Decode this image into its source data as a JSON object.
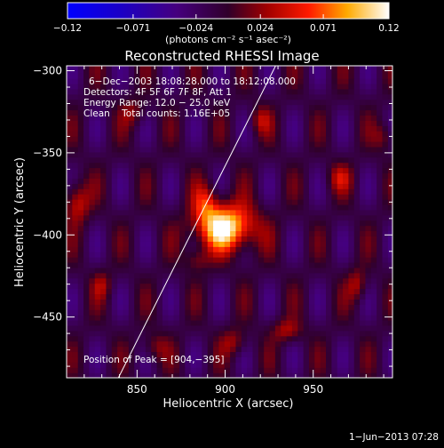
{
  "chart_data": {
    "type": "heatmap",
    "title": "Reconstructed RHESSI Image",
    "xlabel": "Heliocentric X (arcsec)",
    "ylabel": "Heliocentric Y (arcsec)",
    "xlim": [
      810,
      995
    ],
    "ylim": [
      -487,
      -297
    ],
    "x_ticks": [
      850,
      900,
      950
    ],
    "y_ticks": [
      -300,
      -350,
      -400,
      -450
    ],
    "x_tick_labels": [
      "850",
      "900",
      "950"
    ],
    "y_tick_labels": [
      "−300",
      "−350",
      "−400",
      "−450"
    ],
    "colorbar": {
      "min": -0.12,
      "max": 0.12,
      "tick_values": [
        -0.12,
        -0.071,
        -0.024,
        0.024,
        0.071,
        0.12
      ],
      "tick_labels": [
        "−0.12",
        "−0.071",
        "−0.024",
        "0.024",
        "0.071",
        "0.12"
      ],
      "units_text": "(photons cm⁻² s⁻¹ asec⁻²)"
    },
    "annotations": [
      "6−Dec−2003 18:08:28.000 to 18:12:08.000",
      "Detectors: 4F 5F 6F 7F 8F, Att 1",
      "Energy Range: 12.0 − 25.0 keV",
      "Clean    Total counts: 1.16E+05"
    ],
    "peak_text": "Position of Peak = [904,−395]",
    "peak": {
      "x": 904,
      "y": -395,
      "value": 0.12
    },
    "limb_line": {
      "x1": 838,
      "y1": -490,
      "x2": 931,
      "y2": -292
    },
    "sources": [
      {
        "x": 900,
        "y": -395,
        "sx": 12,
        "sy": 10,
        "amp": 0.13
      },
      {
        "x": 889,
        "y": -380,
        "sx": 5,
        "sy": 8,
        "amp": 0.05
      },
      {
        "x": 884,
        "y": -415,
        "sx": 5,
        "sy": 5,
        "amp": 0.035
      },
      {
        "x": 816,
        "y": -380,
        "sx": 5,
        "sy": 9,
        "amp": 0.06
      },
      {
        "x": 848,
        "y": -325,
        "sx": 5,
        "sy": 6,
        "amp": 0.035
      },
      {
        "x": 920,
        "y": -330,
        "sx": 4,
        "sy": 6,
        "amp": 0.04
      },
      {
        "x": 965,
        "y": -365,
        "sx": 5,
        "sy": 6,
        "amp": 0.04
      },
      {
        "x": 975,
        "y": -430,
        "sx": 4,
        "sy": 7,
        "amp": 0.045
      },
      {
        "x": 990,
        "y": -340,
        "sx": 4,
        "sy": 6,
        "amp": 0.035
      },
      {
        "x": 935,
        "y": -458,
        "sx": 6,
        "sy": 5,
        "amp": 0.045
      },
      {
        "x": 905,
        "y": -465,
        "sx": 5,
        "sy": 6,
        "amp": 0.04
      },
      {
        "x": 860,
        "y": -468,
        "sx": 5,
        "sy": 6,
        "amp": 0.035
      },
      {
        "x": 830,
        "y": -430,
        "sx": 4,
        "sy": 6,
        "amp": 0.035
      }
    ],
    "stripes": {
      "period_x": 28,
      "period_y": 70,
      "amp": 0.03
    }
  },
  "footer": {
    "date_text": "1−Jun−2013 07:28"
  }
}
